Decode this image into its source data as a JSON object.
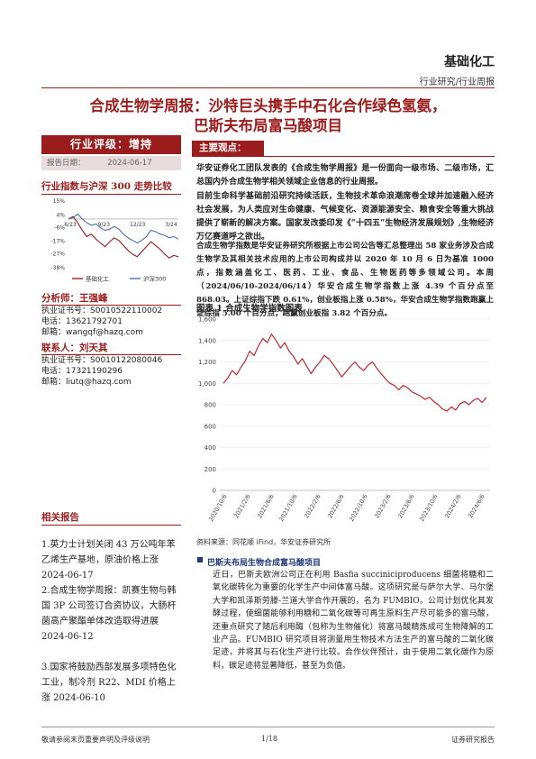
{
  "header": {
    "sector": "基础化工",
    "report_type": "行业研究/行业周报"
  },
  "title": {
    "line1": "合成生物学周报：沙特巨头携手中石化合作绿色氢氨，",
    "line2": "巴斯夫布局富马酸项目"
  },
  "sidebar": {
    "rating": "行业评级：增持",
    "report_date_label": "报告日期：",
    "report_date": "2024-06-17",
    "index_title": "行业指数与沪深 300 走势比较",
    "index_chart": {
      "type": "line",
      "y_ticks": [
        "15%",
        "4%",
        "-6%",
        "-17%",
        "-27%",
        "-38%"
      ],
      "x_ticks": [
        "6/23",
        "9/23",
        "12/23",
        "3/24"
      ],
      "legend": [
        "基础化工",
        "沪深300"
      ],
      "colors": {
        "sector": "#9b1c1c",
        "csi300": "#4a6fb5"
      },
      "series": [
        {
          "name": "基础化工",
          "values": [
            0,
            2,
            -3,
            -9,
            -14,
            -12,
            -16,
            -19,
            -22,
            -18,
            -15,
            -17,
            -21,
            -25,
            -28,
            -30,
            -26,
            -22,
            -18,
            -21,
            -24,
            -28,
            -31,
            -29,
            -30
          ]
        },
        {
          "name": "沪深300",
          "values": [
            0,
            1,
            4,
            0,
            -3,
            -5,
            -4,
            -7,
            -9,
            -8,
            -6,
            -8,
            -12,
            -15,
            -17,
            -19,
            -17,
            -14,
            -9,
            -10,
            -12,
            -13,
            -15,
            -14,
            -16
          ]
        }
      ]
    },
    "analyst_title": "分析师：王强峰",
    "analyst": {
      "cert_label": "执业证书号：",
      "cert": "S0010522110002",
      "phone_label": "电话：",
      "phone": "13621792701",
      "email_label": "邮箱：",
      "email": "wangqf@hazq.com"
    },
    "contact_title": "联系人：刘天其",
    "contact": {
      "cert_label": "执业证书号：",
      "cert": "S0010122080046",
      "phone_label": "电话：",
      "phone": "17321190296",
      "email_label": "邮箱：",
      "email": "liutq@hazq.com"
    },
    "related_title": "相关报告",
    "related": [
      "1.英力士计划关闭 43 万公吨年苯乙烯生产基地，原油价格上涨 2024-06-17",
      "2.合成生物学周报：凯赛生物与韩国 3P 公司签订合资协议，大肠杆菌高产聚酯单体改造取得进展 2024-06-12",
      "3.国家将鼓励西部发展多项特色化工业，制冷剂 R22、MDI 价格上涨 2024-06-10"
    ]
  },
  "main": {
    "key_points_label": "主要观点：",
    "p1": "华安证券化工团队发表的《合成生物学周报》是一份面向一级市场、二级市场，汇总国内外合成生物学相关领域企业信息的行业周报。",
    "p2": "目前生命科学基础前沿研究持续活跃，生物技术革命浪潮席卷全球并加速融入经济社会发展，为人类应对生命健康、气候变化、资源能源安全、粮食安全等重大挑战提供了崭新的解决方案。国家发改委印发《“十四五”生物经济发展规划》,生物经济万亿赛道呼之欲出。",
    "p3": "合成生物学指数是华安证券研究所根据上市公司公告等汇总整理出 58 家业务涉及合成生物学及其相关技术应用的上市公司构成并以 2020 年 10 月 6 日为基准 1000 点，指数涵盖化工、医药、工业、食品、生物医药等多领域公司。本周（2024/06/10-2024/06/14）华安合成生物学指数上涨 4.39 个百分点至 868.03。上证综指下跌 0.61%，创业板指上涨 0.58%，华安合成生物学指数跑赢上证综指 5.00 个百分点，跑赢创业板指 3.82 个百分点。",
    "figure_caption": "图表 1 合成生物学指数图表",
    "figure_source": "资料来源：同花顺 iFind，华安证券研究所",
    "subheading": "巴斯夫布局生物合成富马酸项目",
    "p4": "近日，巴斯夫欧洲公司正在利用 Basfia succiniciproducens 细菌将糖和二氧化碳转化为重要的化学生产中间体富马酸。这项研究是与萨尔大学、马尔堡大学和凯泽斯劳滕-兰道大学合作开展的，名为 FUMBIO。公司计划优化其发酵过程，使细菌能够利用糖和二氧化碳等可再生原料生产尽可能多的富马酸，还重点研究了随后利用酶（包称为生物催化）将富马酸精炼成可生物降解的工业产品。FUMBIO 研究项目将测量用生物技术方法生产的富马酸的二氧化碳足迹，并将其与石化生产进行比较。合作伙伴预计，由于使用二氧化碳作为原料，碳足迹将显著降低，甚至为负值。"
  },
  "chart_data": {
    "type": "line",
    "title": "图表 1 合成生物学指数图表",
    "y_ticks": [
      0,
      200,
      400,
      600,
      800,
      1000,
      1200,
      1400,
      1600
    ],
    "ylim": [
      0,
      1600
    ],
    "x_ticks": [
      "2020/10/6",
      "2021/2/6",
      "2021/6/6",
      "2021/10/6",
      "2022/2/6",
      "2022/6/6",
      "2022/10/6",
      "2023/2/6",
      "2023/6/6",
      "2023/10/6",
      "2024/2/6",
      "2024/6/6"
    ],
    "series_color": "#c0272d",
    "values": [
      1000,
      1050,
      1120,
      1080,
      1150,
      1210,
      1300,
      1260,
      1350,
      1420,
      1380,
      1460,
      1400,
      1330,
      1380,
      1300,
      1250,
      1180,
      1230,
      1160,
      1090,
      1150,
      1200,
      1260,
      1230,
      1180,
      1120,
      1060,
      1110,
      1160,
      1200,
      1150,
      1120,
      1170,
      1200,
      1140,
      1090,
      1040,
      1000,
      980,
      940,
      980,
      960,
      920,
      900,
      880,
      850,
      870,
      830,
      800,
      760,
      740,
      780,
      750,
      810,
      830,
      800,
      840,
      860,
      820,
      868
    ]
  },
  "footer": {
    "disclaimer": "敬请参阅末页重要声明及评级说明",
    "page": "1/18",
    "brand": "证券研究报告"
  }
}
